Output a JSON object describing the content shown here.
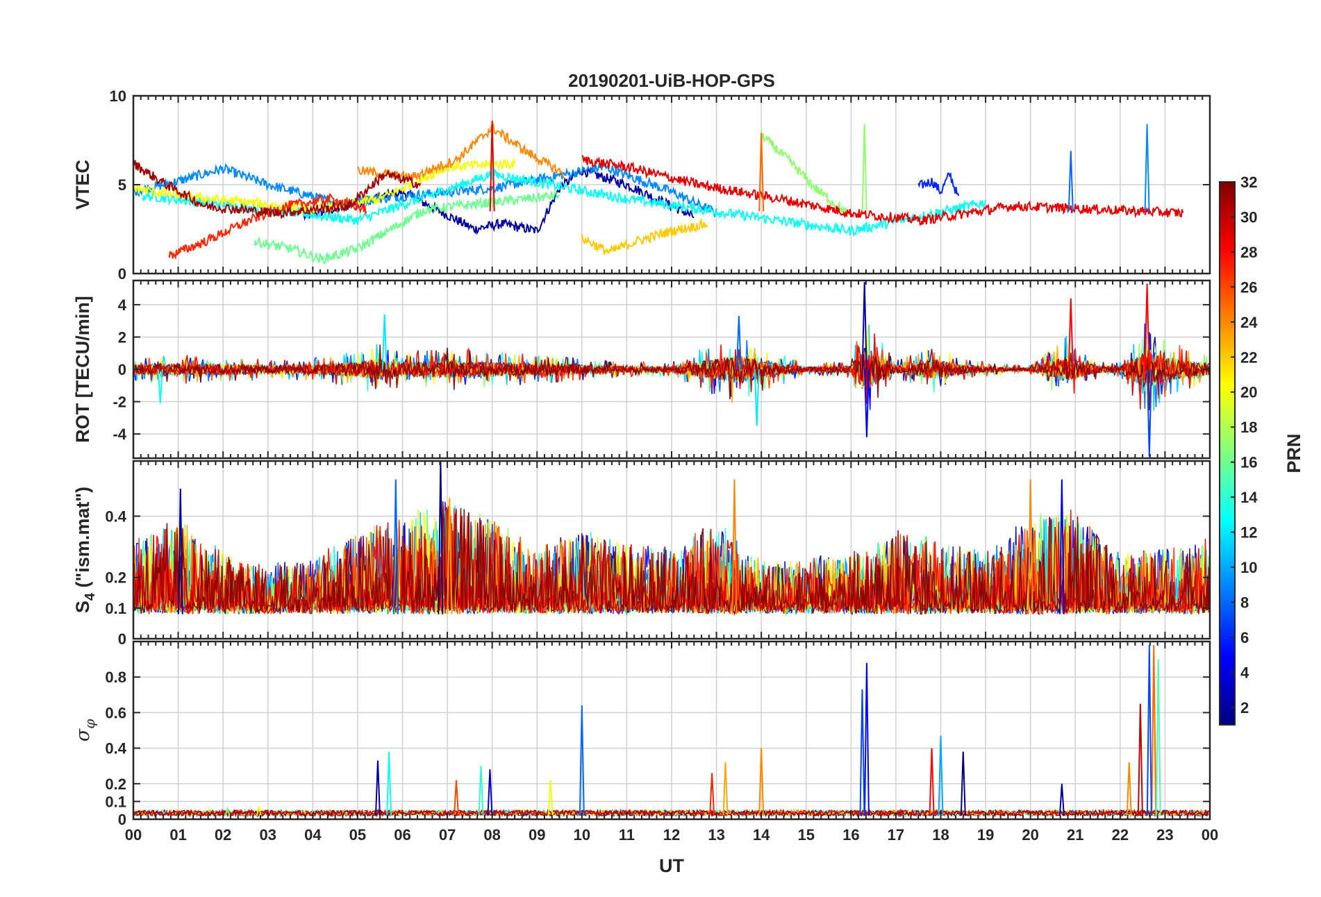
{
  "chart_data": {
    "type": "line",
    "title": "20190201-UiB-HOP-GPS",
    "xlabel": "UT",
    "x_tick_labels": [
      "00",
      "01",
      "02",
      "03",
      "04",
      "05",
      "06",
      "07",
      "08",
      "09",
      "10",
      "11",
      "12",
      "13",
      "14",
      "15",
      "16",
      "17",
      "18",
      "19",
      "20",
      "21",
      "22",
      "23",
      "00"
    ],
    "xlim_hours": [
      0,
      24
    ],
    "grid": true,
    "colorbar": {
      "label": "PRN",
      "range": [
        1,
        32
      ],
      "ticks": [
        "2",
        "4",
        "6",
        "8",
        "10",
        "12",
        "14",
        "16",
        "18",
        "20",
        "22",
        "24",
        "26",
        "28",
        "30",
        "32"
      ],
      "colormap": "jet",
      "colors": [
        "#000080",
        "#0000ff",
        "#0080ff",
        "#00ffff",
        "#80ff80",
        "#ffff00",
        "#ff8000",
        "#ff0000",
        "#800000"
      ]
    },
    "panels": [
      {
        "id": "vtec",
        "ylabel": "VTEC",
        "ylim": [
          0,
          10
        ],
        "y_ticks": [
          0,
          5,
          10
        ],
        "y_tick_labels": [
          "0",
          "5",
          "10"
        ],
        "baseline": 3.5,
        "series": [
          {
            "prn": 2,
            "x": [
              3.8,
              6.0,
              7.6,
              8.2,
              9.0,
              9.5,
              10.0,
              11.0,
              12.5
            ],
            "y": [
              3.2,
              4.6,
              2.5,
              2.8,
              2.4,
              4.8,
              5.8,
              5.0,
              3.2
            ]
          },
          {
            "prn": 6,
            "x": [
              17.5,
              17.8,
              18.0,
              18.2,
              18.4
            ],
            "y": [
              4.9,
              5.2,
              4.6,
              5.6,
              4.2
            ]
          },
          {
            "prn": 9,
            "x": [
              0.0,
              1.0,
              2.0,
              3.0,
              4.5,
              8.0,
              10.5,
              12.0,
              13.0
            ],
            "y": [
              4.6,
              5.2,
              5.9,
              5.0,
              4.0,
              4.8,
              6.0,
              4.6,
              3.4
            ]
          },
          {
            "prn": 13,
            "x": [
              0.2,
              1.5,
              3.0,
              5.0,
              8.0,
              11.0,
              16.0,
              19.0
            ],
            "y": [
              4.4,
              4.0,
              3.6,
              3.0,
              5.6,
              4.2,
              2.4,
              4.0
            ]
          },
          {
            "prn": 16,
            "x": [
              2.7,
              3.5,
              4.2,
              5.0,
              6.5,
              9.5
            ],
            "y": [
              1.8,
              1.4,
              0.8,
              1.4,
              3.6,
              4.4
            ]
          },
          {
            "prn": 17,
            "x": [
              14.0,
              14.6,
              15.2,
              16.0
            ],
            "y": [
              7.8,
              6.4,
              4.8,
              3.2
            ]
          },
          {
            "prn": 20,
            "x": [
              0.0,
              1.0,
              2.5,
              4.0,
              5.5,
              7.0,
              8.5
            ],
            "y": [
              4.8,
              4.4,
              4.0,
              3.6,
              4.2,
              6.0,
              6.2
            ]
          },
          {
            "prn": 22,
            "x": [
              10.0,
              10.6,
              11.2,
              12.0,
              12.8
            ],
            "y": [
              2.0,
              1.2,
              1.8,
              2.4,
              2.8
            ]
          },
          {
            "prn": 24,
            "x": [
              5.0,
              6.2,
              7.2,
              8.0,
              8.8,
              9.6
            ],
            "y": [
              5.8,
              5.4,
              6.4,
              8.2,
              6.8,
              5.6
            ]
          },
          {
            "prn": 27,
            "x": [
              0.8,
              1.6,
              2.6,
              3.4,
              4.4,
              5.2
            ],
            "y": [
              1.0,
              1.8,
              3.0,
              3.8,
              4.2,
              3.6
            ]
          },
          {
            "prn": 29,
            "x": [
              10.0,
              11.0,
              12.6,
              14.4,
              16.0,
              17.6,
              19.6,
              21.6,
              23.4
            ],
            "y": [
              6.4,
              6.0,
              5.0,
              4.2,
              3.4,
              3.0,
              3.8,
              3.6,
              3.4
            ]
          },
          {
            "prn": 31,
            "x": [
              0.0,
              0.6,
              1.6,
              3.2,
              4.8,
              5.6,
              6.4
            ],
            "y": [
              6.2,
              5.2,
              3.8,
              3.4,
              3.8,
              5.6,
              5.0
            ]
          }
        ],
        "spikes": [
          {
            "x": 8.0,
            "y": 8.6
          },
          {
            "x": 16.3,
            "y": 8.4
          },
          {
            "x": 22.6,
            "y": 8.4
          },
          {
            "x": 20.9,
            "y": 6.9
          },
          {
            "x": 14.0,
            "y": 7.9
          }
        ]
      },
      {
        "id": "rot",
        "ylabel": "ROT [TECU/min]",
        "ylim": [
          -5.5,
          5.5
        ],
        "y_ticks": [
          -4,
          -2,
          0,
          2,
          4
        ],
        "y_tick_labels": [
          "-4",
          "-2",
          "0",
          "2",
          "4"
        ],
        "baseline": 0,
        "activity": [
          {
            "x": [
              0.0,
              1.0,
              2.0,
              3.0,
              4.0,
              5.0,
              5.5,
              6.0,
              7.0,
              8.0,
              9.0,
              10.0,
              11.0,
              12.0,
              13.0,
              13.5,
              14.0,
              15.0,
              16.0,
              16.3,
              17.0,
              17.8,
              18.5,
              19.5,
              20.0,
              20.8,
              21.5,
              22.0,
              22.6,
              23.0,
              24.0
            ],
            "amp": [
              0.8,
              1.0,
              0.9,
              0.7,
              0.8,
              1.3,
              1.9,
              1.2,
              1.5,
              1.3,
              1.0,
              0.8,
              0.5,
              0.5,
              1.9,
              2.5,
              1.6,
              0.4,
              0.6,
              4.0,
              0.6,
              1.7,
              0.8,
              0.3,
              0.3,
              2.3,
              0.6,
              0.5,
              3.5,
              2.0,
              1.0
            ]
          }
        ],
        "spikes": [
          {
            "x": 16.3,
            "y": 5.4
          },
          {
            "x": 16.35,
            "y": -4.2
          },
          {
            "x": 22.6,
            "y": 5.3
          },
          {
            "x": 22.65,
            "y": -5.4
          },
          {
            "x": 20.9,
            "y": 4.4
          },
          {
            "x": 13.9,
            "y": -3.5
          },
          {
            "x": 13.5,
            "y": 3.3
          },
          {
            "x": 5.6,
            "y": 3.4
          },
          {
            "x": 0.6,
            "y": -2.1
          }
        ]
      },
      {
        "id": "s4",
        "ylabel": "S4 (\"ism.mat\")",
        "ylabel_main": "S",
        "ylabel_sub": "4",
        "ylabel_rest": " (\"ism.mat\")",
        "ylim": [
          0,
          0.58
        ],
        "y_ticks": [
          0,
          0.1,
          0.2,
          0.4
        ],
        "y_tick_labels": [
          "0",
          "0.1",
          "0.2",
          "0.4"
        ],
        "baseline": 0.08,
        "activity": [
          {
            "x": [
              0.0,
              1.0,
              2.0,
              3.0,
              4.0,
              5.0,
              6.0,
              7.0,
              8.0,
              9.0,
              10.0,
              11.0,
              12.0,
              13.0,
              14.0,
              15.0,
              16.0,
              17.0,
              18.0,
              19.0,
              20.0,
              21.0,
              22.0,
              23.0,
              24.0
            ],
            "amp": [
              0.22,
              0.3,
              0.18,
              0.14,
              0.16,
              0.25,
              0.3,
              0.35,
              0.3,
              0.2,
              0.25,
              0.22,
              0.2,
              0.28,
              0.15,
              0.16,
              0.18,
              0.25,
              0.22,
              0.18,
              0.3,
              0.32,
              0.18,
              0.2,
              0.22
            ]
          }
        ],
        "spikes": [
          {
            "x": 6.85,
            "y": 0.58
          },
          {
            "x": 13.4,
            "y": 0.52
          },
          {
            "x": 20.0,
            "y": 0.52
          },
          {
            "x": 20.7,
            "y": 0.52
          },
          {
            "x": 1.05,
            "y": 0.49
          },
          {
            "x": 5.85,
            "y": 0.52
          },
          {
            "x": 7.05,
            "y": 0.46
          }
        ]
      },
      {
        "id": "sigma_phi",
        "ylabel": "σφ",
        "ylabel_main": "σ",
        "ylabel_sub": "φ",
        "ylim": [
          0,
          1.0
        ],
        "y_ticks": [
          0,
          0.1,
          0.2,
          0.4,
          0.6,
          0.8
        ],
        "y_tick_labels": [
          "0",
          "0.1",
          "0.2",
          "0.4",
          "0.6",
          "0.8"
        ],
        "baseline": 0.02,
        "spikes": [
          {
            "x": 22.75,
            "y": 0.98
          },
          {
            "x": 22.65,
            "y": 0.98
          },
          {
            "x": 22.85,
            "y": 0.9
          },
          {
            "x": 16.35,
            "y": 0.88
          },
          {
            "x": 16.25,
            "y": 0.73
          },
          {
            "x": 22.45,
            "y": 0.65
          },
          {
            "x": 10.0,
            "y": 0.64
          },
          {
            "x": 18.0,
            "y": 0.47
          },
          {
            "x": 14.0,
            "y": 0.4
          },
          {
            "x": 17.8,
            "y": 0.4
          },
          {
            "x": 18.5,
            "y": 0.38
          },
          {
            "x": 5.7,
            "y": 0.38
          },
          {
            "x": 5.45,
            "y": 0.33
          },
          {
            "x": 13.2,
            "y": 0.32
          },
          {
            "x": 7.95,
            "y": 0.28
          },
          {
            "x": 7.75,
            "y": 0.3
          },
          {
            "x": 12.9,
            "y": 0.26
          },
          {
            "x": 7.2,
            "y": 0.22
          },
          {
            "x": 9.3,
            "y": 0.22
          },
          {
            "x": 20.7,
            "y": 0.2
          },
          {
            "x": 22.2,
            "y": 0.32
          },
          {
            "x": 2.1,
            "y": 0.06
          },
          {
            "x": 2.8,
            "y": 0.07
          }
        ]
      }
    ]
  }
}
